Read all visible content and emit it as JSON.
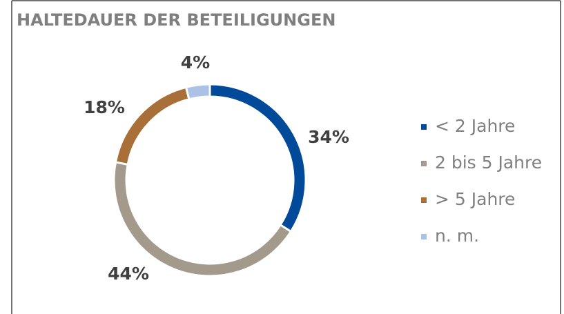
{
  "chart_data": {
    "type": "donut",
    "title": "HALTEDAUER DER BETEILIGUNGEN",
    "categories": [
      "< 2 Jahre",
      "2 bis 5 Jahre",
      "> 5 Jahre",
      "n. m."
    ],
    "values": [
      34,
      44,
      18,
      4
    ],
    "value_labels": [
      "34%",
      "44%",
      "18%",
      "4%"
    ],
    "colors": [
      "#004a99",
      "#a39a8c",
      "#a86f38",
      "#abc1e5"
    ],
    "legend": "right"
  }
}
